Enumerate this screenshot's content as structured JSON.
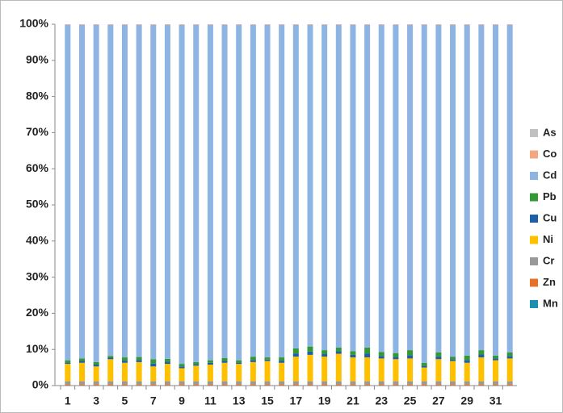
{
  "chart_data": {
    "type": "stacked_bar_percent",
    "categories": [
      "1",
      null,
      "3",
      null,
      "5",
      null,
      "7",
      null,
      "9",
      null,
      "11",
      null,
      "13",
      null,
      "15",
      null,
      "17",
      null,
      "19",
      null,
      "21",
      null,
      "23",
      null,
      "25",
      null,
      "27",
      null,
      "29",
      null,
      "31",
      null
    ],
    "ylim": [
      0,
      100
    ],
    "yticks": [
      {
        "value": 0,
        "label": "0%"
      },
      {
        "value": 10,
        "label": "10%"
      },
      {
        "value": 20,
        "label": "20%"
      },
      {
        "value": 30,
        "label": "30%"
      },
      {
        "value": 40,
        "label": "40%"
      },
      {
        "value": 50,
        "label": "50%"
      },
      {
        "value": 60,
        "label": "60%"
      },
      {
        "value": 70,
        "label": "70%"
      },
      {
        "value": 80,
        "label": "80%"
      },
      {
        "value": 90,
        "label": "90%"
      },
      {
        "value": 100,
        "label": "100%"
      }
    ],
    "legend": "right",
    "series": [
      {
        "name": "Mn",
        "color": "#1b8fb0",
        "values": [
          0.1,
          0.1,
          0.1,
          0.1,
          0.1,
          0.1,
          0.1,
          0.1,
          0.1,
          0.1,
          0.1,
          0.1,
          0.1,
          0.1,
          0.1,
          0.1,
          0.1,
          0.1,
          0.1,
          0.1,
          0.1,
          0.1,
          0.1,
          0.1,
          0.1,
          0.1,
          0.1,
          0.1,
          0.1,
          0.1,
          0.1,
          0.1
        ]
      },
      {
        "name": "Zn",
        "color": "#e8702a",
        "values": [
          0.3,
          0.3,
          0.3,
          0.3,
          0.3,
          0.3,
          0.3,
          0.3,
          0.3,
          0.3,
          0.3,
          0.3,
          0.3,
          0.3,
          0.3,
          0.3,
          0.3,
          0.3,
          0.3,
          0.3,
          0.3,
          0.3,
          0.3,
          0.3,
          0.3,
          0.3,
          0.3,
          0.3,
          0.3,
          0.3,
          0.3,
          0.3
        ]
      },
      {
        "name": "Cr",
        "color": "#999999",
        "values": [
          0.8,
          0.8,
          0.8,
          0.8,
          0.8,
          0.8,
          0.8,
          0.8,
          0.8,
          0.8,
          0.8,
          0.8,
          0.8,
          0.8,
          0.8,
          0.8,
          0.8,
          0.8,
          0.8,
          0.8,
          0.8,
          0.8,
          0.8,
          0.8,
          0.8,
          0.8,
          0.8,
          0.8,
          0.8,
          0.8,
          0.8,
          0.8
        ]
      },
      {
        "name": "Ni",
        "color": "#ffc000",
        "values": [
          4.8,
          5.1,
          4.1,
          6.1,
          5.1,
          5.3,
          4.1,
          4.8,
          3.6,
          4.3,
          4.6,
          5.1,
          4.8,
          5.3,
          5.6,
          5.1,
          6.8,
          7.3,
          6.8,
          7.6,
          6.6,
          6.6,
          6.3,
          6.1,
          6.3,
          3.8,
          6.1,
          5.6,
          5.1,
          6.6,
          5.8,
          6.3
        ]
      },
      {
        "name": "Cu",
        "color": "#1f5fa8",
        "values": [
          0.4,
          0.5,
          0.5,
          0.4,
          0.6,
          0.6,
          0.8,
          0.6,
          0.5,
          0.4,
          0.5,
          0.5,
          0.4,
          0.6,
          0.4,
          0.6,
          0.9,
          0.9,
          0.7,
          0.7,
          0.7,
          1.1,
          0.7,
          0.7,
          0.9,
          0.5,
          0.8,
          0.5,
          0.8,
          0.8,
          0.5,
          0.7
        ]
      },
      {
        "name": "Pb",
        "color": "#339933",
        "values": [
          0.6,
          0.7,
          0.7,
          0.5,
          0.9,
          0.8,
          1.2,
          0.8,
          0.7,
          0.6,
          0.7,
          0.8,
          0.6,
          0.9,
          0.6,
          0.9,
          1.4,
          1.4,
          1.1,
          1.0,
          1.0,
          1.6,
          1.1,
          1.0,
          1.4,
          0.8,
          1.1,
          0.7,
          1.2,
          1.2,
          0.8,
          1.0
        ]
      },
      {
        "name": "Cd",
        "color": "#8db4e2",
        "values": [
          92.8,
          92.3,
          93.3,
          91.6,
          92.0,
          91.9,
          92.5,
          92.4,
          93.8,
          93.3,
          92.8,
          92.2,
          92.8,
          91.8,
          92.0,
          92.0,
          89.5,
          89.0,
          90.0,
          89.3,
          90.3,
          89.3,
          90.5,
          90.8,
          90.0,
          93.5,
          90.6,
          91.8,
          91.5,
          90.0,
          91.5,
          90.6
        ]
      },
      {
        "name": "Co",
        "color": "#f4a582",
        "values": [
          0.1,
          0.1,
          0.1,
          0.1,
          0.1,
          0.1,
          0.1,
          0.1,
          0.1,
          0.1,
          0.1,
          0.1,
          0.1,
          0.1,
          0.1,
          0.1,
          0.1,
          0.1,
          0.1,
          0.1,
          0.1,
          0.1,
          0.1,
          0.1,
          0.1,
          0.1,
          0.1,
          0.1,
          0.1,
          0.1,
          0.1,
          0.1
        ]
      },
      {
        "name": "As",
        "color": "#c0c0c0",
        "values": [
          0.1,
          0.1,
          0.1,
          0.1,
          0.1,
          0.1,
          0.1,
          0.1,
          0.1,
          0.1,
          0.1,
          0.1,
          0.1,
          0.1,
          0.1,
          0.1,
          0.1,
          0.1,
          0.1,
          0.1,
          0.1,
          0.1,
          0.1,
          0.1,
          0.1,
          0.1,
          0.1,
          0.1,
          0.1,
          0.1,
          0.1,
          0.1
        ]
      }
    ]
  }
}
